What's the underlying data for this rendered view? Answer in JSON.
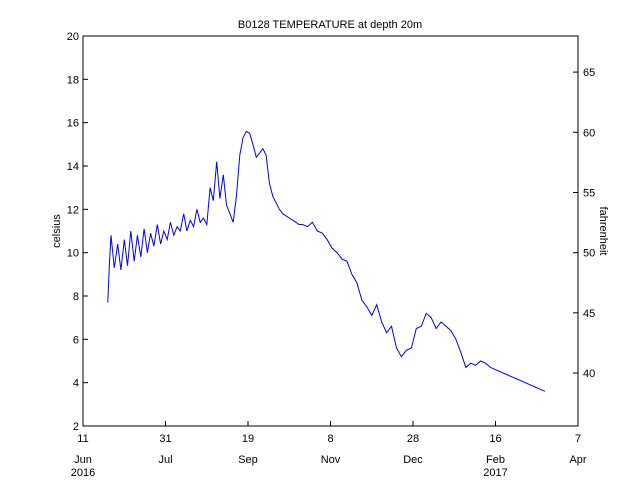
{
  "chart_data": {
    "type": "line",
    "title": "B0128 TEMPERATURE at depth 20m",
    "ylabel": "celsius",
    "y2label": "fahrenheit",
    "ylim": [
      2,
      20
    ],
    "y2lim": [
      35.6,
      68
    ],
    "yticks": [
      2,
      4,
      6,
      8,
      10,
      12,
      14,
      16,
      18,
      20
    ],
    "y2ticks": [
      40,
      45,
      50,
      55,
      60,
      65
    ],
    "xlim": [
      "2016-06-11",
      "2017-04-07"
    ],
    "xticks": [
      {
        "date": "2016-06-11",
        "day": "11",
        "month": "Jun",
        "year": "2016"
      },
      {
        "date": "2016-07-31",
        "day": "31",
        "month": "Jul",
        "year": ""
      },
      {
        "date": "2016-09-19",
        "day": "19",
        "month": "Sep",
        "year": ""
      },
      {
        "date": "2016-11-08",
        "day": "8",
        "month": "Nov",
        "year": ""
      },
      {
        "date": "2016-12-28",
        "day": "28",
        "month": "Dec",
        "year": ""
      },
      {
        "date": "2017-02-16",
        "day": "16",
        "month": "Feb",
        "year": "2017"
      },
      {
        "date": "2017-04-07",
        "day": "7",
        "month": "Apr",
        "year": ""
      }
    ],
    "grid": false,
    "line_color": "#0000ff",
    "series": [
      {
        "name": "",
        "x": [
          "2016-06-26",
          "2016-06-27",
          "2016-06-28",
          "2016-06-30",
          "2016-07-02",
          "2016-07-04",
          "2016-07-06",
          "2016-07-08",
          "2016-07-10",
          "2016-07-12",
          "2016-07-14",
          "2016-07-16",
          "2016-07-18",
          "2016-07-20",
          "2016-07-22",
          "2016-07-24",
          "2016-07-26",
          "2016-07-28",
          "2016-07-30",
          "2016-08-01",
          "2016-08-03",
          "2016-08-05",
          "2016-08-07",
          "2016-08-09",
          "2016-08-11",
          "2016-08-13",
          "2016-08-15",
          "2016-08-17",
          "2016-08-19",
          "2016-08-21",
          "2016-08-23",
          "2016-08-25",
          "2016-08-27",
          "2016-08-29",
          "2016-08-31",
          "2016-09-02",
          "2016-09-04",
          "2016-09-06",
          "2016-09-08",
          "2016-09-10",
          "2016-09-12",
          "2016-09-14",
          "2016-09-16",
          "2016-09-18",
          "2016-09-20",
          "2016-09-22",
          "2016-09-24",
          "2016-09-26",
          "2016-09-28",
          "2016-09-30",
          "2016-10-02",
          "2016-10-04",
          "2016-10-06",
          "2016-10-08",
          "2016-10-10",
          "2016-10-12",
          "2016-10-14",
          "2016-10-16",
          "2016-10-18",
          "2016-10-20",
          "2016-10-22",
          "2016-10-25",
          "2016-10-28",
          "2016-10-31",
          "2016-11-03",
          "2016-11-06",
          "2016-11-09",
          "2016-11-12",
          "2016-11-15",
          "2016-11-18",
          "2016-11-21",
          "2016-11-24",
          "2016-11-27",
          "2016-11-30",
          "2016-12-03",
          "2016-12-06",
          "2016-12-09",
          "2016-12-12",
          "2016-12-15",
          "2016-12-18",
          "2016-12-21",
          "2016-12-24",
          "2016-12-27",
          "2016-12-30",
          "2017-01-02",
          "2017-01-05",
          "2017-01-08",
          "2017-01-11",
          "2017-01-14",
          "2017-01-17",
          "2017-01-20",
          "2017-01-23",
          "2017-01-26",
          "2017-01-29",
          "2017-02-01",
          "2017-02-04",
          "2017-02-07",
          "2017-02-10",
          "2017-02-13",
          "2017-02-16",
          "2017-02-19",
          "2017-02-22",
          "2017-02-25",
          "2017-02-28",
          "2017-03-03",
          "2017-03-06",
          "2017-03-09",
          "2017-03-12",
          "2017-03-15",
          "2017-03-18"
        ],
        "values": [
          7.7,
          9.5,
          10.8,
          9.3,
          10.4,
          9.2,
          10.6,
          9.4,
          11.0,
          9.6,
          10.8,
          9.8,
          11.1,
          10.0,
          10.9,
          10.3,
          11.3,
          10.4,
          11.0,
          10.6,
          11.4,
          10.8,
          11.2,
          11.0,
          11.8,
          11.0,
          11.5,
          11.2,
          12.0,
          11.4,
          11.6,
          11.3,
          13.0,
          12.4,
          14.2,
          12.5,
          13.6,
          12.2,
          11.8,
          11.4,
          12.6,
          14.5,
          15.3,
          15.6,
          15.5,
          15.0,
          14.4,
          14.6,
          14.8,
          14.5,
          13.2,
          12.6,
          12.3,
          12.0,
          11.8,
          11.7,
          11.6,
          11.5,
          11.4,
          11.3,
          11.3,
          11.2,
          11.4,
          11.0,
          10.9,
          10.6,
          10.2,
          10.0,
          9.7,
          9.6,
          9.0,
          8.6,
          7.8,
          7.5,
          7.1,
          7.6,
          6.8,
          6.3,
          6.6,
          5.6,
          5.2,
          5.5,
          5.6,
          6.5,
          6.6,
          7.2,
          7.0,
          6.5,
          6.8,
          6.6,
          6.4,
          6.0,
          5.4,
          4.7,
          4.9,
          4.8,
          5.0,
          4.9,
          4.7,
          4.6,
          4.5,
          4.4,
          4.3,
          4.2,
          4.1,
          4.0,
          3.9,
          3.8,
          3.7,
          3.6
        ]
      }
    ]
  }
}
